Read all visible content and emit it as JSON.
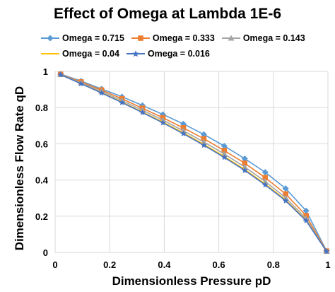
{
  "chart_data": {
    "type": "line",
    "title": "Effect of Omega at Lambda 1E-6",
    "xlabel": "Dimensionless Pressure pD",
    "ylabel": "Dimensionless Flow Rate qD",
    "xlim": [
      0,
      1
    ],
    "ylim": [
      0,
      1
    ],
    "x_ticks": [
      "0",
      "0.2",
      "0.4",
      "0.6",
      "0.8",
      "1"
    ],
    "y_ticks": [
      "0",
      "0.2",
      "0.4",
      "0.6",
      "0.8",
      "1"
    ],
    "grid": true,
    "legend_position": "top",
    "x": [
      0.02,
      0.095,
      0.17,
      0.245,
      0.32,
      0.395,
      0.47,
      0.545,
      0.62,
      0.695,
      0.77,
      0.845,
      0.92,
      0.995
    ],
    "series": [
      {
        "name": "Omega = 0.715",
        "color": "#5b9bd5",
        "marker": "diamond",
        "values": [
          0.985,
          0.947,
          0.903,
          0.86,
          0.812,
          0.762,
          0.71,
          0.652,
          0.588,
          0.518,
          0.443,
          0.353,
          0.23,
          0.008
        ]
      },
      {
        "name": "Omega = 0.333",
        "color": "#ed7d31",
        "marker": "square",
        "values": [
          0.984,
          0.942,
          0.897,
          0.849,
          0.797,
          0.744,
          0.688,
          0.628,
          0.563,
          0.493,
          0.413,
          0.323,
          0.203,
          0.007
        ]
      },
      {
        "name": "Omega = 0.143",
        "color": "#a5a5a5",
        "marker": "triangle",
        "values": [
          0.983,
          0.937,
          0.89,
          0.839,
          0.786,
          0.731,
          0.672,
          0.61,
          0.544,
          0.472,
          0.392,
          0.302,
          0.187,
          0.006
        ]
      },
      {
        "name": "Omega = 0.04",
        "color": "#ffc000",
        "marker": "none",
        "values": [
          0.982,
          0.933,
          0.883,
          0.831,
          0.776,
          0.72,
          0.66,
          0.597,
          0.53,
          0.458,
          0.378,
          0.29,
          0.178,
          0.006
        ]
      },
      {
        "name": "Omega = 0.016",
        "color": "#4472c4",
        "marker": "star",
        "values": [
          0.982,
          0.932,
          0.881,
          0.828,
          0.773,
          0.716,
          0.656,
          0.592,
          0.525,
          0.453,
          0.373,
          0.285,
          0.175,
          0.006
        ]
      }
    ]
  }
}
